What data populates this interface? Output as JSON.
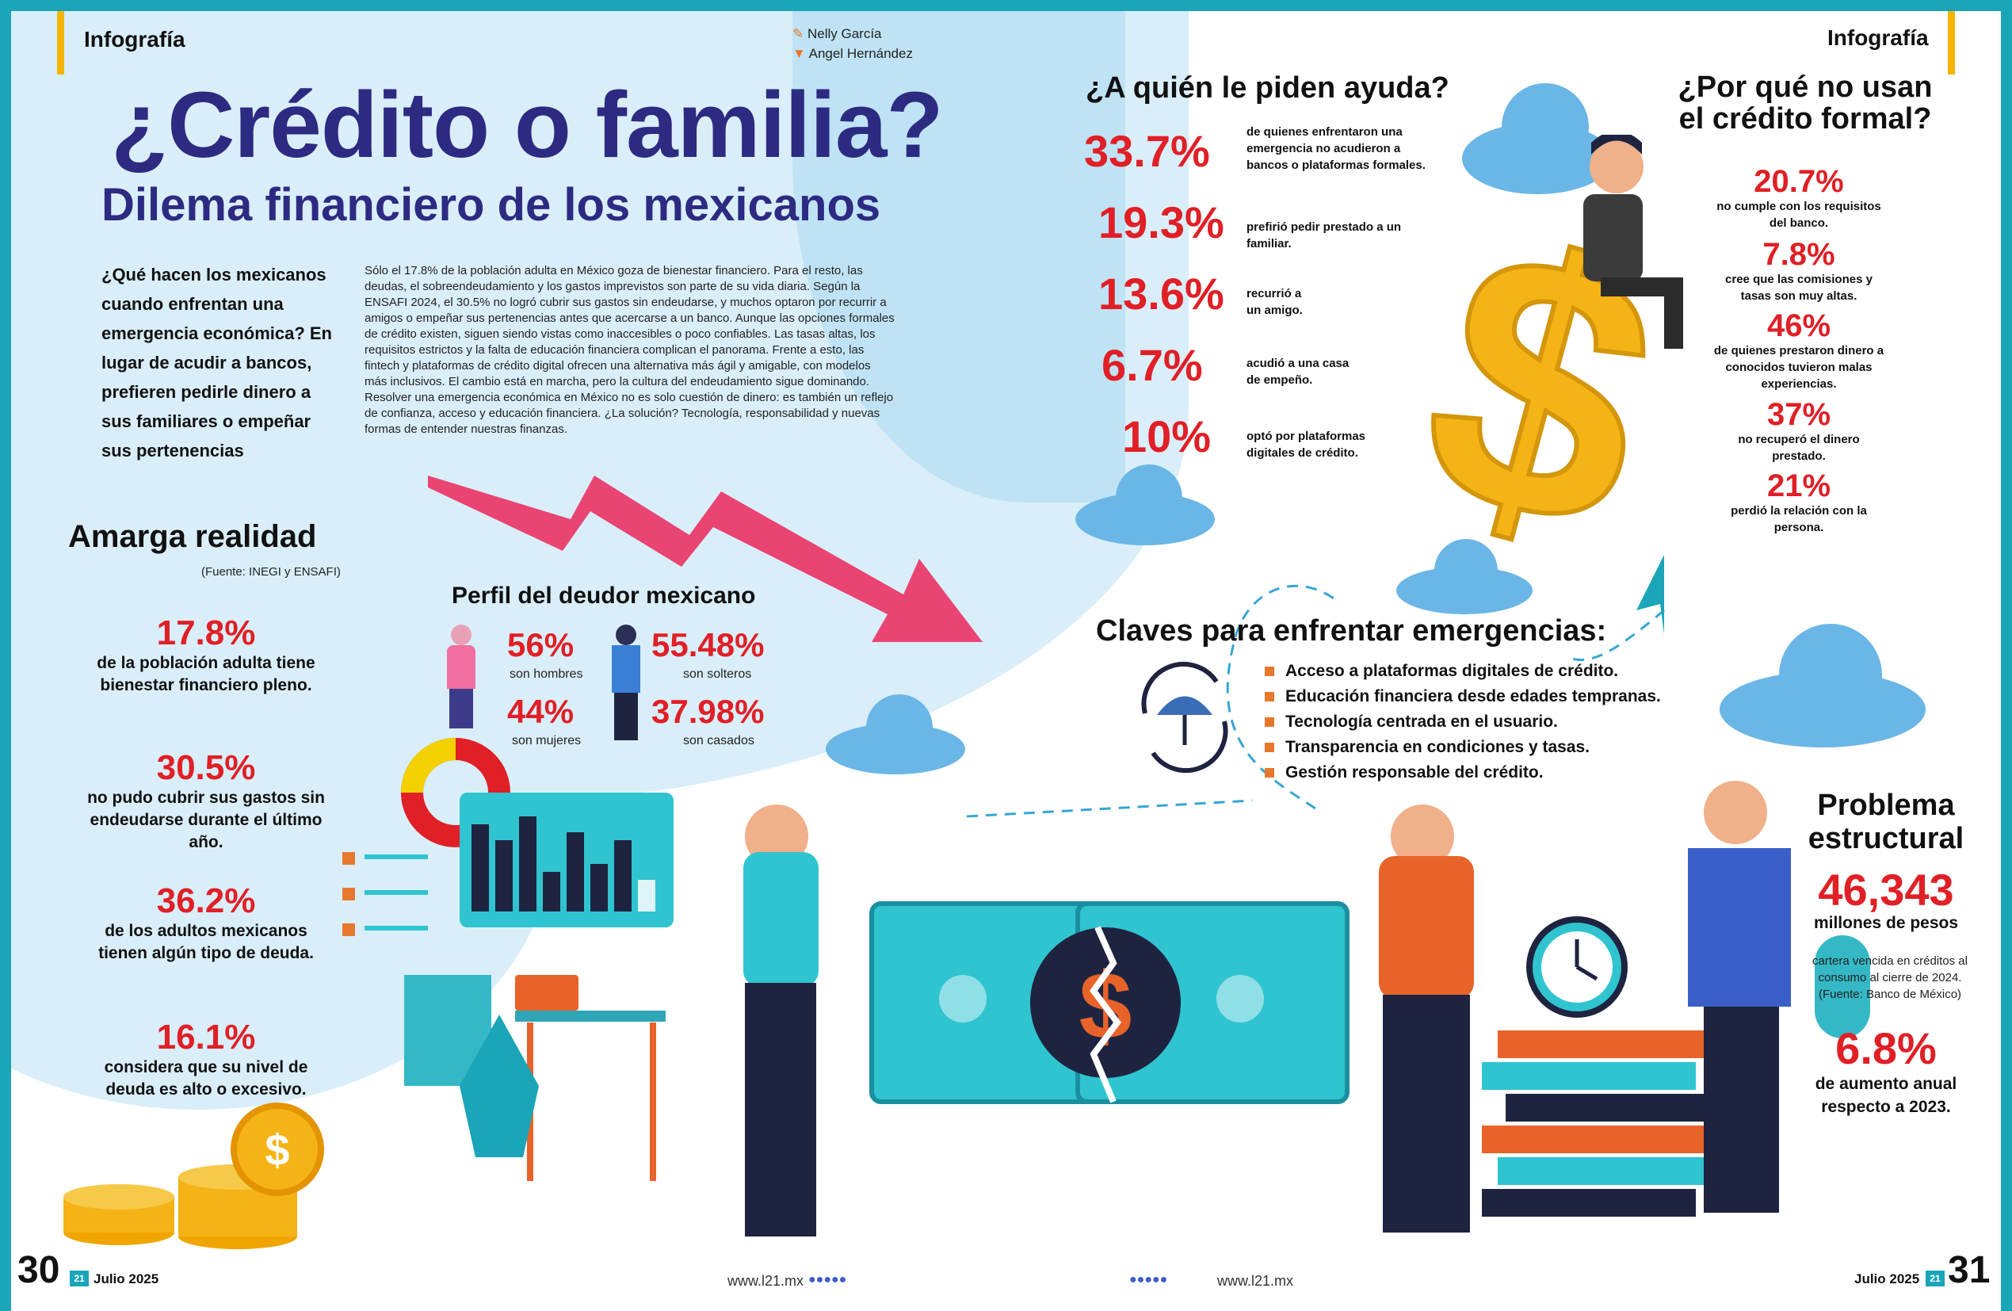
{
  "header": {
    "section_left": "Infografía",
    "section_right": "Infografía",
    "author1": "Nelly García",
    "author2": "Angel Hernández"
  },
  "main": {
    "title": "¿Crédito o familia?",
    "subtitle": "Dilema financiero de los mexicanos",
    "lead": "¿Qué hacen los mexicanos cuando enfrentan una emergencia económica? En lugar de acudir a bancos, prefieren pedirle dinero a sus familiares o empeñar sus pertenencias",
    "body": "Sólo el 17.8% de la población adulta en México goza de bienestar financiero. Para el resto, las deudas, el sobreendeudamiento y los gastos imprevistos son parte de su vida diaria. Según la ENSAFI 2024, el 30.5% no logró cubrir sus gastos sin endeudarse, y muchos optaron por recurrir a amigos o empeñar sus pertenencias antes que acercarse a un banco. Aunque las opciones formales de crédito existen, siguen siendo vistas como inaccesibles o poco confiables. Las tasas altas, los requisitos estrictos y la falta de educación financiera complican el panorama. Frente a esto, las fintech y plataformas de crédito digital ofrecen una alternativa más ágil y amigable, con modelos más inclusivos. El cambio está en marcha, pero la cultura del endeudamiento sigue dominando. Resolver una emergencia económica en México no es solo cuestión de dinero: es también un reflejo de confianza, acceso y educación financiera. ¿La solución? Tecnología, responsabilidad y nuevas formas de entender nuestras finanzas."
  },
  "reality": {
    "title": "Amarga realidad",
    "source": "(Fuente: INEGI y ENSAFI)",
    "stats": [
      {
        "num": "17.8%",
        "desc": "de la población adulta tiene bienestar financiero pleno."
      },
      {
        "num": "30.5%",
        "desc": "no pudo cubrir sus gastos sin endeudarse durante el último año."
      },
      {
        "num": "36.2%",
        "desc": "de los adultos mexicanos tienen algún tipo de deuda."
      },
      {
        "num": "16.1%",
        "desc": "considera que su nivel de deuda es alto o excesivo."
      }
    ]
  },
  "profile": {
    "title": "Perfil del deudor mexicano",
    "items": [
      {
        "num": "56%",
        "desc": "son hombres"
      },
      {
        "num": "55.48%",
        "desc": "son solteros"
      },
      {
        "num": "44%",
        "desc": "son mujeres"
      },
      {
        "num": "37.98%",
        "desc": "son casados"
      }
    ]
  },
  "help": {
    "title": "¿A quién le piden ayuda?",
    "rows": [
      {
        "num": "33.7%",
        "desc": "de quienes enfrentaron una emergencia no acudieron a bancos o plataformas formales."
      },
      {
        "num": "19.3%",
        "desc": "prefirió pedir prestado a un familiar."
      },
      {
        "num": "13.6%",
        "desc": "recurrió a un amigo."
      },
      {
        "num": "6.7%",
        "desc": "acudió a una casa de empeño."
      },
      {
        "num": "10%",
        "desc": "optó por plataformas digitales de crédito."
      }
    ]
  },
  "why": {
    "title1": "¿Por qué no usan",
    "title2": "el crédito formal?",
    "rows": [
      {
        "num": "20.7%",
        "desc": "no cumple con los requisitos del banco."
      },
      {
        "num": "7.8%",
        "desc": "cree que las comisiones y tasas son muy altas."
      },
      {
        "num": "46%",
        "desc": "de quienes prestaron dinero a conocidos tuvieron malas experiencias."
      },
      {
        "num": "37%",
        "desc": "no recuperó el dinero prestado."
      },
      {
        "num": "21%",
        "desc": "perdió la relación con la persona."
      }
    ]
  },
  "keys": {
    "title": "Claves para enfrentar emergencias:",
    "items": [
      "Acceso a plataformas digitales de crédito.",
      "Educación financiera desde edades tempranas.",
      "Tecnología centrada en el usuario.",
      "Transparencia en condiciones y tasas.",
      "Gestión responsable del crédito."
    ]
  },
  "structural": {
    "title1": "Problema",
    "title2": "estructural",
    "num1": "46,343",
    "unit1": "millones de pesos",
    "desc1": "cartera vencida en créditos al consumo al cierre de 2024. (Fuente: Banco de México)",
    "num2": "6.8%",
    "desc2": "de aumento anual respecto a 2023."
  },
  "footer": {
    "page_left": "30",
    "page_right": "31",
    "date": "Julio 2025",
    "url": "www.l21.mx",
    "logo": "21"
  },
  "colors": {
    "navy": "#2d2a82",
    "red": "#e01f26",
    "teal": "#1aa5b8",
    "yellow": "#f4b400"
  }
}
